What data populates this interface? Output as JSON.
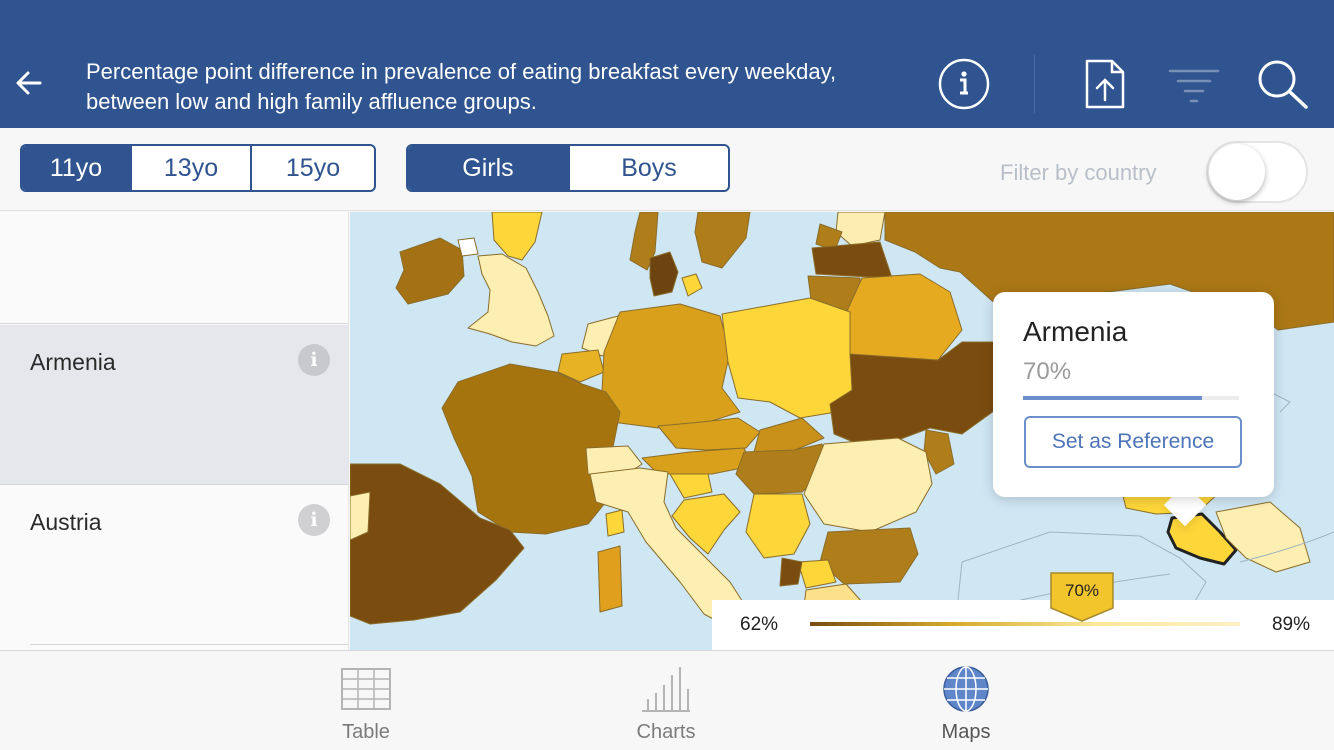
{
  "header": {
    "back_icon": "back-arrow-icon",
    "title": "Percentage point difference in prevalence of eating breakfast every weekday, between low and high family affluence groups.",
    "actions": [
      "info-icon",
      "share-icon",
      "filter-icon",
      "search-icon"
    ],
    "color": "#30548f"
  },
  "age_groups": {
    "items": [
      "11yo",
      "13yo",
      "15yo"
    ],
    "selected": "11yo"
  },
  "gender": {
    "items": [
      "Girls",
      "Boys"
    ],
    "selected": "Girls"
  },
  "filter": {
    "label": "Filter by country",
    "enabled": false
  },
  "country_list": [
    {
      "name": ""
    },
    {
      "name": "Armenia",
      "selected": true
    },
    {
      "name": "Austria"
    }
  ],
  "popover": {
    "country": "Armenia",
    "value": "70%",
    "fraction": 0.83,
    "button": "Set as Reference"
  },
  "legend": {
    "min": "62%",
    "max": "89%",
    "marker": "70%",
    "marker_fraction": 0.3,
    "colors": [
      "#7a4c10",
      "#d6ab2c",
      "#fbe89a",
      "#fdf1c4"
    ]
  },
  "tabs": [
    {
      "label": "Table",
      "icon": "table-icon"
    },
    {
      "label": "Charts",
      "icon": "bar-chart-icon"
    },
    {
      "label": "Maps",
      "icon": "globe-icon",
      "selected": true
    }
  ]
}
